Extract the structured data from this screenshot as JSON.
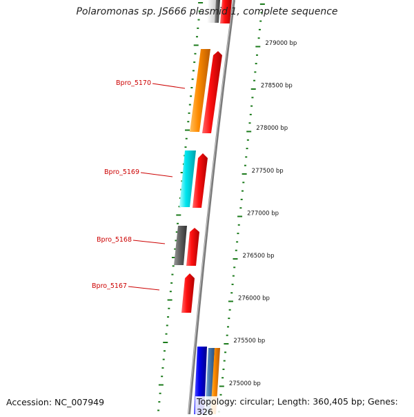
{
  "title": "Polaromonas sp. JS666 plasmid 1, complete sequence",
  "footer": {
    "accession": "Accession: NC_007949",
    "summary": "Topology: circular; Length: 360,405 bp; Genes: 326"
  },
  "scale": {
    "unit": "bp",
    "ticks": [
      {
        "value": 279000,
        "label": "279000 bp"
      },
      {
        "value": 278500,
        "label": "278500 bp"
      },
      {
        "value": 278000,
        "label": "278000 bp"
      },
      {
        "value": 277500,
        "label": "277500 bp"
      },
      {
        "value": 277000,
        "label": "277000 bp"
      },
      {
        "value": 276500,
        "label": "276500 bp"
      },
      {
        "value": 276000,
        "label": "276000 bp"
      },
      {
        "value": 275500,
        "label": "275500 bp"
      },
      {
        "value": 275000,
        "label": "275000 bp"
      }
    ]
  },
  "gene_labels": [
    {
      "name": "Bpro_5170"
    },
    {
      "name": "Bpro_5169"
    },
    {
      "name": "Bpro_5168"
    },
    {
      "name": "Bpro_5167"
    }
  ],
  "colors": {
    "backbone": "#7a7a7a",
    "tick_mark": "#1a7a1a",
    "label_line": "#cc0000",
    "gene_red": "#ee0000",
    "gene_orange": "#ff8c00",
    "gene_cyan": "#00e5ee",
    "gene_gray": "#555555",
    "gene_blue": "#0000dd",
    "gene_steel": "#4a7fb5"
  }
}
